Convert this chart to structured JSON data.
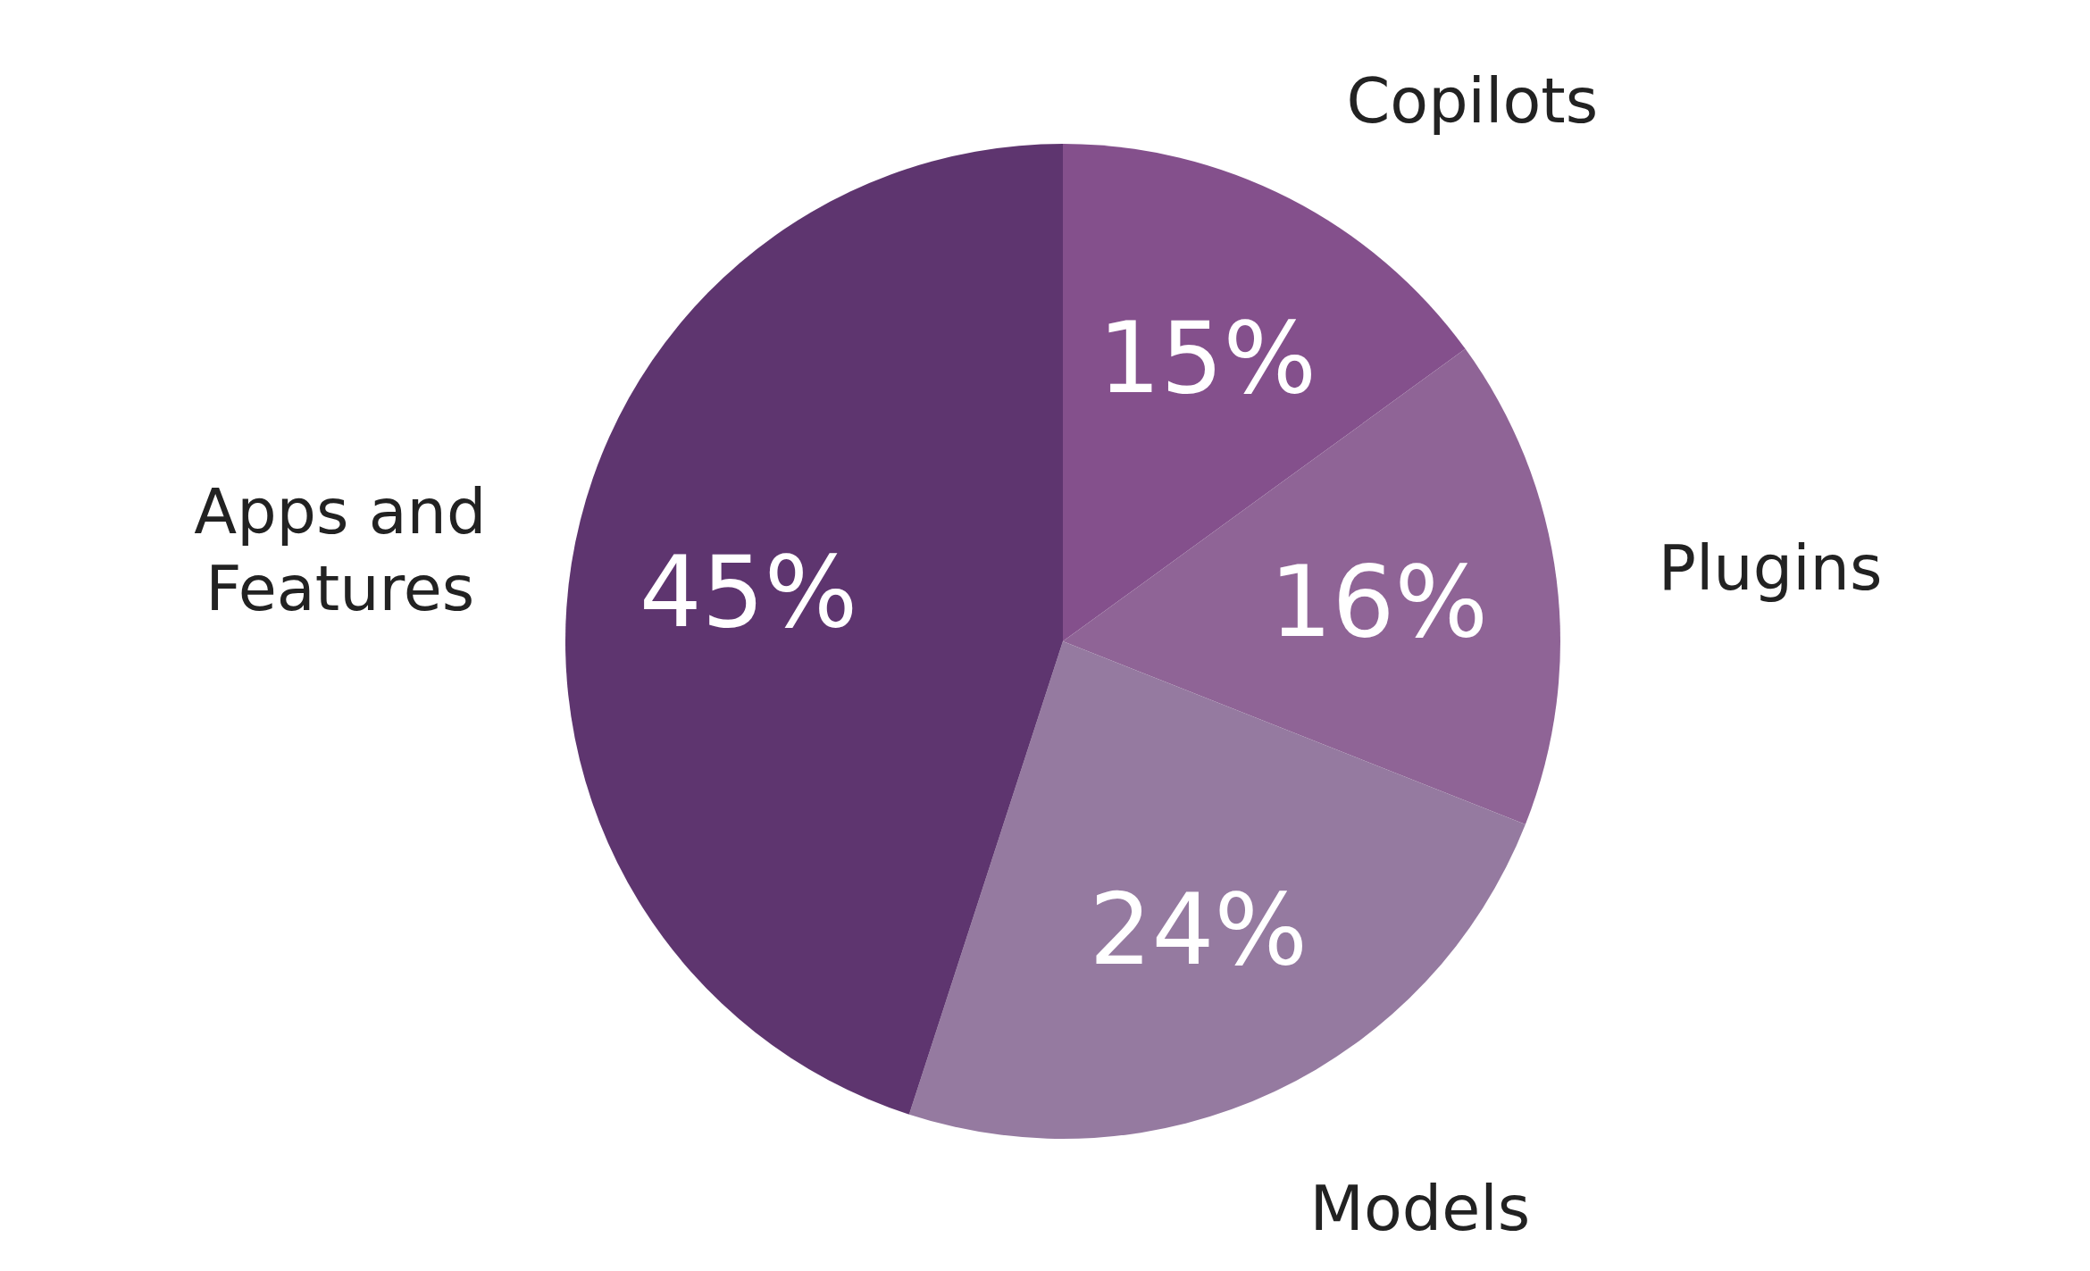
{
  "chart_data": {
    "type": "pie",
    "categories": [
      "Copilots",
      "Plugins",
      "Models",
      "Apps and Features"
    ],
    "values": [
      15,
      16,
      24,
      45
    ],
    "colors": [
      "#84508c",
      "#8f6496",
      "#957aa0",
      "#5e356f"
    ],
    "value_labels": [
      "15%",
      "16%",
      "24%",
      "45%"
    ]
  }
}
